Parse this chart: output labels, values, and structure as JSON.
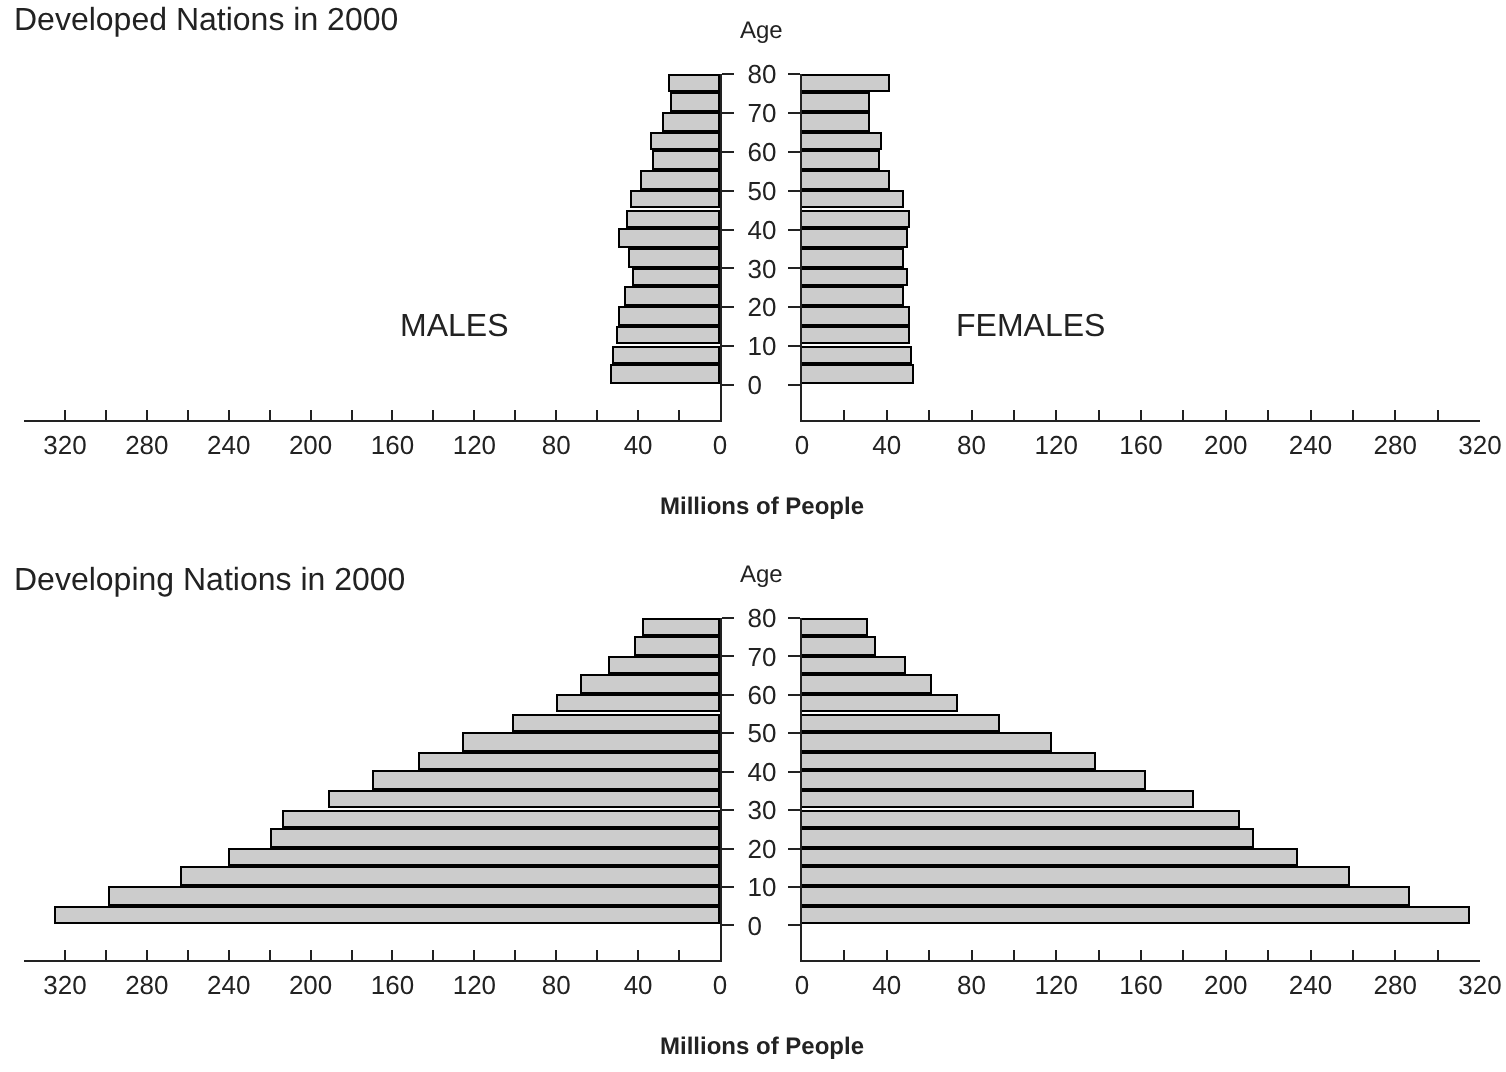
{
  "chart_data": [
    {
      "type": "bar",
      "orientation": "horizontal",
      "title": "Developed Nations in 2000",
      "xlabel": "Millions of People",
      "ylabel": "Age",
      "annotations": [
        "MALES"
      ],
      "x": [
        2.5,
        7.5,
        12.5,
        17.5,
        22.5,
        27.5,
        32.5,
        37.5,
        42.5,
        47.5,
        52.5,
        57.5,
        62.5,
        67.5,
        72.5,
        77.5
      ],
      "ylim": [
        -9,
        80
      ],
      "yticks": [
        0,
        10,
        20,
        30,
        40,
        50,
        60,
        70,
        80
      ],
      "xlim": [
        340,
        0
      ],
      "xticks": [
        0,
        {
          "value": 20,
          "label": null
        },
        40,
        {
          "value": 60,
          "label": null
        },
        80,
        {
          "value": 100,
          "label": null
        },
        120,
        {
          "value": 140,
          "label": null
        },
        160,
        {
          "value": 180,
          "label": null
        },
        200,
        {
          "value": 220,
          "label": null
        },
        240,
        {
          "value": 260,
          "label": null
        },
        280,
        {
          "value": 300,
          "label": null
        },
        320
      ],
      "series": [
        {
          "color": "#cccccc",
          "values": [
            53,
            52,
            50,
            49,
            46,
            42,
            44,
            49,
            45,
            43,
            38,
            32,
            33,
            27,
            23,
            24
          ]
        }
      ]
    },
    {
      "type": "bar",
      "orientation": "horizontal",
      "annotations": [
        "FEMALES"
      ],
      "tick_labels": "x",
      "x": [
        2.5,
        7.5,
        12.5,
        17.5,
        22.5,
        27.5,
        32.5,
        37.5,
        42.5,
        47.5,
        52.5,
        57.5,
        62.5,
        67.5,
        72.5,
        77.5
      ],
      "ylim": [
        -9,
        80
      ],
      "yticks": [
        0,
        10,
        20,
        30,
        40,
        50,
        60,
        70,
        80
      ],
      "xlim": [
        0,
        320
      ],
      "xticks": [
        0,
        {
          "value": 20,
          "label": null
        },
        40,
        {
          "value": 60,
          "label": null
        },
        80,
        {
          "value": 100,
          "label": null
        },
        120,
        {
          "value": 140,
          "label": null
        },
        160,
        {
          "value": 180,
          "label": null
        },
        200,
        {
          "value": 220,
          "label": null
        },
        240,
        {
          "value": 260,
          "label": null
        },
        280,
        {
          "value": 300,
          "label": null
        },
        320
      ],
      "series": [
        {
          "color": "#cccccc",
          "values": [
            53,
            52,
            51,
            51,
            48,
            50,
            48,
            50,
            51,
            48,
            42,
            37,
            38,
            32,
            32,
            42
          ]
        }
      ]
    },
    {
      "type": "bar",
      "orientation": "horizontal",
      "title": "Developing Nations in 2000",
      "xlabel": "Millions of People",
      "ylabel": "Age",
      "x": [
        2.5,
        7.5,
        12.5,
        17.5,
        22.5,
        27.5,
        32.5,
        37.5,
        42.5,
        47.5,
        52.5,
        57.5,
        62.5,
        67.5,
        72.5,
        77.5
      ],
      "ylim": [
        -9,
        80
      ],
      "yticks": [
        0,
        10,
        20,
        30,
        40,
        50,
        60,
        70,
        80
      ],
      "xlim": [
        340,
        0
      ],
      "xticks": [
        0,
        {
          "value": 20,
          "label": null
        },
        40,
        {
          "value": 60,
          "label": null
        },
        80,
        {
          "value": 100,
          "label": null
        },
        120,
        {
          "value": 140,
          "label": null
        },
        160,
        {
          "value": 180,
          "label": null
        },
        200,
        {
          "value": 220,
          "label": null
        },
        240,
        {
          "value": 260,
          "label": null
        },
        280,
        {
          "value": 300,
          "label": null
        },
        320
      ],
      "series": [
        {
          "color": "#cccccc",
          "values": [
            324,
            298,
            263,
            239,
            219,
            213,
            191,
            169,
            147,
            125,
            101,
            79,
            67,
            54,
            41,
            37
          ]
        }
      ]
    },
    {
      "type": "bar",
      "orientation": "horizontal",
      "tick_labels": "x",
      "x": [
        2.5,
        7.5,
        12.5,
        17.5,
        22.5,
        27.5,
        32.5,
        37.5,
        42.5,
        47.5,
        52.5,
        57.5,
        62.5,
        67.5,
        72.5,
        77.5
      ],
      "ylim": [
        -9,
        80
      ],
      "yticks": [
        0,
        10,
        20,
        30,
        40,
        50,
        60,
        70,
        80
      ],
      "xlim": [
        0,
        320
      ],
      "xticks": [
        0,
        {
          "value": 20,
          "label": null
        },
        40,
        {
          "value": 60,
          "label": null
        },
        80,
        {
          "value": 100,
          "label": null
        },
        120,
        {
          "value": 140,
          "label": null
        },
        160,
        {
          "value": 180,
          "label": null
        },
        200,
        {
          "value": 220,
          "label": null
        },
        240,
        {
          "value": 260,
          "label": null
        },
        280,
        {
          "value": 300,
          "label": null
        },
        320
      ],
      "series": [
        {
          "color": "#cccccc",
          "values": [
            315,
            287,
            259,
            234,
            213,
            207,
            185,
            162,
            139,
            118,
            93,
            74,
            61,
            49,
            35,
            31
          ]
        }
      ]
    }
  ]
}
